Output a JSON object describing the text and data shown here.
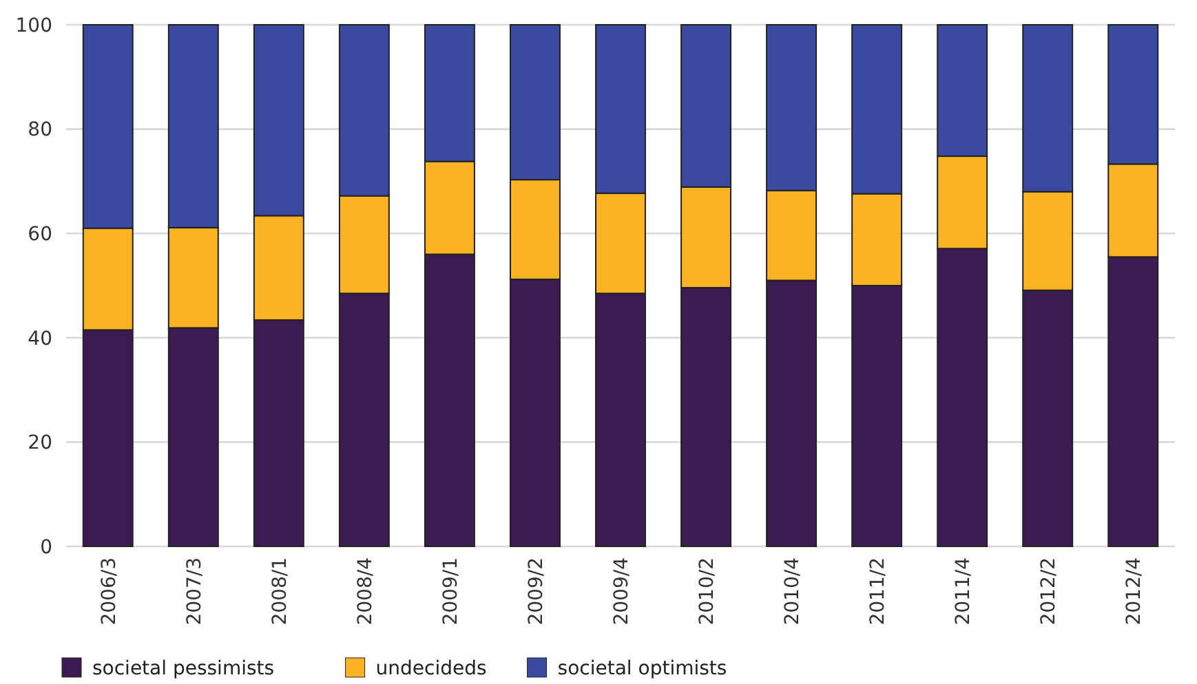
{
  "chart_data": {
    "type": "bar",
    "stacked": true,
    "categories": [
      "2006/3",
      "2007/3",
      "2008/1",
      "2008/4",
      "2009/1",
      "2009/2",
      "2009/4",
      "2010/2",
      "2010/4",
      "2011/2",
      "2011/4",
      "2012/2",
      "2012/4"
    ],
    "series": [
      {
        "name": "societal pessimists",
        "color": "#3c1a52",
        "values": [
          41.5,
          41.9,
          43.4,
          48.5,
          56.0,
          51.2,
          48.5,
          49.6,
          51.0,
          50.0,
          57.1,
          49.1,
          55.5
        ]
      },
      {
        "name": "undecideds",
        "color": "#fbb323",
        "values": [
          19.5,
          19.2,
          20.0,
          18.7,
          17.8,
          19.1,
          19.2,
          19.3,
          17.2,
          17.6,
          17.7,
          18.9,
          17.8
        ]
      },
      {
        "name": "societal optimists",
        "color": "#3b4a9e",
        "values": [
          39.0,
          38.9,
          36.6,
          32.8,
          26.2,
          29.7,
          32.3,
          31.1,
          31.8,
          32.4,
          25.2,
          32.0,
          26.7
        ]
      }
    ],
    "ylim": [
      0,
      100
    ],
    "yticks": [
      0,
      20,
      40,
      60,
      80,
      100
    ],
    "grid": "y",
    "legend": "bottom left"
  }
}
